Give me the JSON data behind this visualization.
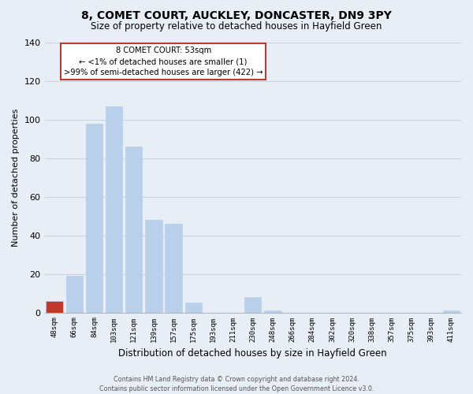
{
  "title": "8, COMET COURT, AUCKLEY, DONCASTER, DN9 3PY",
  "subtitle": "Size of property relative to detached houses in Hayfield Green",
  "xlabel": "Distribution of detached houses by size in Hayfield Green",
  "ylabel": "Number of detached properties",
  "bar_labels": [
    "48sqm",
    "66sqm",
    "84sqm",
    "103sqm",
    "121sqm",
    "139sqm",
    "157sqm",
    "175sqm",
    "193sqm",
    "211sqm",
    "230sqm",
    "248sqm",
    "266sqm",
    "284sqm",
    "302sqm",
    "320sqm",
    "338sqm",
    "357sqm",
    "375sqm",
    "393sqm",
    "411sqm"
  ],
  "bar_values": [
    6,
    19,
    98,
    107,
    86,
    48,
    46,
    5,
    0,
    0,
    8,
    1,
    0,
    0,
    0,
    0,
    0,
    0,
    0,
    0,
    1
  ],
  "bar_color": "#b8d0ea",
  "highlight_bar_index": 0,
  "highlight_bar_color": "#c0392b",
  "ylim": [
    0,
    140
  ],
  "yticks": [
    0,
    20,
    40,
    60,
    80,
    100,
    120,
    140
  ],
  "annotation_title": "8 COMET COURT: 53sqm",
  "annotation_line1": "← <1% of detached houses are smaller (1)",
  "annotation_line2": ">99% of semi-detached houses are larger (422) →",
  "annotation_box_facecolor": "#ffffff",
  "annotation_box_edgecolor": "#c0392b",
  "footer_line1": "Contains HM Land Registry data © Crown copyright and database right 2024.",
  "footer_line2": "Contains public sector information licensed under the Open Government Licence v3.0.",
  "bg_color": "#e8eef5",
  "plot_bg_color": "#e8eef5",
  "grid_color": "#c8d4e0",
  "spine_color": "#b0b8c4"
}
